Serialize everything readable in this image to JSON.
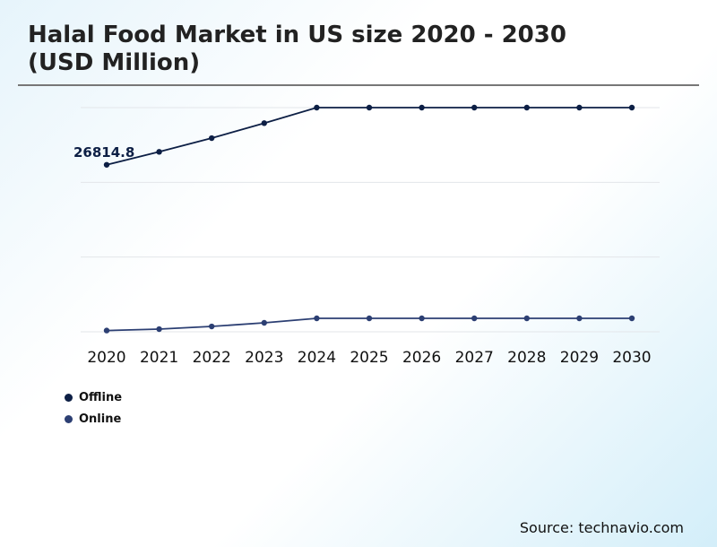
{
  "chart_data": {
    "type": "line",
    "title": "Halal Food Market in US size 2020 - 2030\n(USD Million)",
    "title_lines": [
      "Halal Food Market in US size 2020 - 2030",
      "(USD Million)"
    ],
    "x": [
      "2020",
      "2021",
      "2022",
      "2023",
      "2024",
      "2025",
      "2026",
      "2027",
      "2028",
      "2029",
      "2030"
    ],
    "ylim": [
      0,
      36000
    ],
    "grid": true,
    "legend_position": "bottom-left",
    "series": [
      {
        "name": "Offline",
        "color": "#0d1f45",
        "values": [
          26814.8,
          28900,
          31100,
          33500,
          36000,
          36000,
          36000,
          36000,
          36000,
          36000,
          36000
        ]
      },
      {
        "name": "Online",
        "color": "#2c3f73",
        "values": [
          200,
          430,
          860,
          1440,
          2160,
          2160,
          2160,
          2160,
          2160,
          2160,
          2160
        ]
      }
    ],
    "annotations": [
      {
        "series": "Offline",
        "x": "2020",
        "text": "26814.8"
      }
    ]
  },
  "source": "Source: technavio.com"
}
